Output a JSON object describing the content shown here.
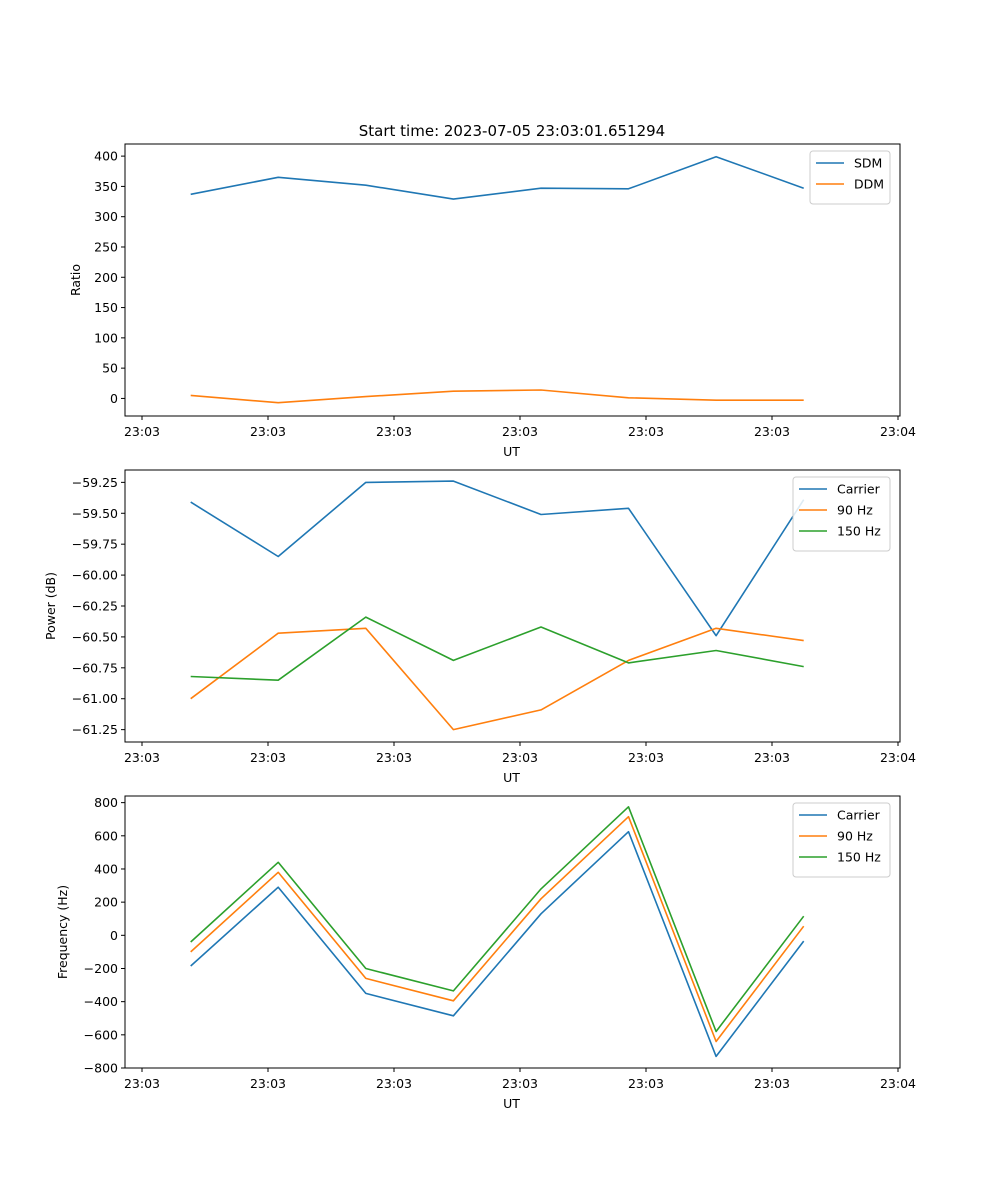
{
  "figure": {
    "title": "Start time: 2023-07-05 23:03:01.651294"
  },
  "chart_data": [
    {
      "type": "line",
      "xlabel": "UT",
      "ylabel": "Ratio",
      "x_tick_labels": [
        "23:03",
        "23:03",
        "23:03",
        "23:03",
        "23:03",
        "23:03",
        "23:04"
      ],
      "yticks": [
        0,
        50,
        100,
        150,
        200,
        250,
        300,
        350,
        400
      ],
      "ylim": [
        -29,
        420
      ],
      "x": [
        1,
        2,
        3,
        4,
        5,
        6,
        7,
        8
      ],
      "xlim": [
        0.25,
        9.1
      ],
      "legend_position": "top-right",
      "series": [
        {
          "name": "SDM",
          "color": "#1f77b4",
          "values": [
            337,
            365,
            352,
            329,
            347,
            346,
            399,
            347
          ]
        },
        {
          "name": "DDM",
          "color": "#ff7f0e",
          "values": [
            5,
            -7,
            3,
            12,
            14,
            1,
            -3,
            -3
          ]
        }
      ]
    },
    {
      "type": "line",
      "xlabel": "UT",
      "ylabel": "Power (dB)",
      "x_tick_labels": [
        "23:03",
        "23:03",
        "23:03",
        "23:03",
        "23:03",
        "23:03",
        "23:04"
      ],
      "yticks": [
        -61.25,
        -61.0,
        -60.75,
        -60.5,
        -60.25,
        -60.0,
        -59.75,
        -59.5,
        -59.25
      ],
      "ytick_labels": [
        "−61.25",
        "−61.00",
        "−60.75",
        "−60.50",
        "−60.25",
        "−60.00",
        "−59.75",
        "−59.50",
        "−59.25"
      ],
      "ylim": [
        -61.35,
        -59.15
      ],
      "x": [
        1,
        2,
        3,
        4,
        5,
        6,
        7,
        8
      ],
      "xlim": [
        0.25,
        9.1
      ],
      "legend_position": "top-right",
      "series": [
        {
          "name": "Carrier",
          "color": "#1f77b4",
          "values": [
            -59.41,
            -59.85,
            -59.25,
            -59.24,
            -59.51,
            -59.46,
            -60.49,
            -59.39
          ]
        },
        {
          "name": "90 Hz",
          "color": "#ff7f0e",
          "values": [
            -61.0,
            -60.47,
            -60.43,
            -61.25,
            -61.09,
            -60.69,
            -60.43,
            -60.53
          ]
        },
        {
          "name": "150 Hz",
          "color": "#2ca02c",
          "values": [
            -60.82,
            -60.85,
            -60.34,
            -60.69,
            -60.42,
            -60.71,
            -60.61,
            -60.74
          ]
        }
      ]
    },
    {
      "type": "line",
      "xlabel": "UT",
      "ylabel": "Frequency (Hz)",
      "x_tick_labels": [
        "23:03",
        "23:03",
        "23:03",
        "23:03",
        "23:03",
        "23:03",
        "23:04"
      ],
      "yticks": [
        -800,
        -600,
        -400,
        -200,
        0,
        200,
        400,
        600,
        800
      ],
      "ytick_labels": [
        "−800",
        "−600",
        "−400",
        "−200",
        "0",
        "200",
        "400",
        "600",
        "800"
      ],
      "ylim": [
        -800,
        840
      ],
      "x": [
        1,
        2,
        3,
        4,
        5,
        6,
        7,
        8
      ],
      "xlim": [
        0.25,
        9.1
      ],
      "legend_position": "top-right",
      "series": [
        {
          "name": "Carrier",
          "color": "#1f77b4",
          "values": [
            -185,
            290,
            -350,
            -485,
            130,
            625,
            -730,
            -35
          ]
        },
        {
          "name": "90 Hz",
          "color": "#ff7f0e",
          "values": [
            -100,
            380,
            -260,
            -395,
            220,
            715,
            -640,
            55
          ]
        },
        {
          "name": "150 Hz",
          "color": "#2ca02c",
          "values": [
            -40,
            440,
            -200,
            -335,
            280,
            775,
            -580,
            115
          ]
        }
      ]
    }
  ]
}
